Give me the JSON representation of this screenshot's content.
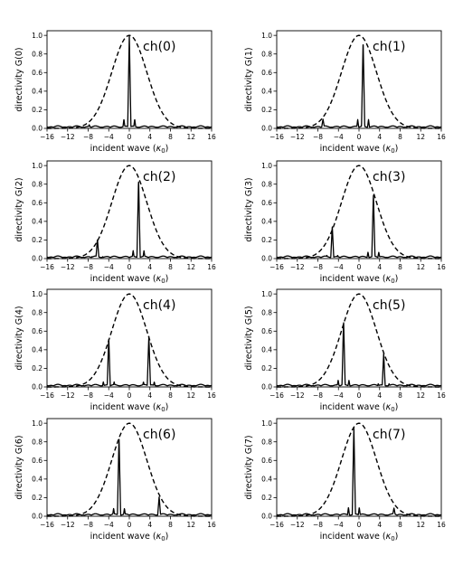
{
  "chart_data": {
    "type": "line",
    "layout": "4x2 grid of subplots",
    "xlabel": "incident wave (κ₀)",
    "xlabel_main": "incident wave (",
    "xlabel_symbol": "κ",
    "xlabel_sub": "0",
    "xlabel_close": ")",
    "xlim": [
      -16,
      16
    ],
    "ylim": [
      0,
      1.05
    ],
    "x_ticks": [
      -16,
      -12,
      -8,
      -4,
      0,
      4,
      8,
      12,
      16
    ],
    "x_tick_labels": [
      "−16",
      "−12",
      "−8",
      "−4",
      "0",
      "4",
      "8",
      "12",
      "16"
    ],
    "y_ticks": [
      0,
      0.2,
      0.4,
      0.6,
      0.8,
      1.0
    ],
    "y_tick_labels": [
      "0.0",
      "0.2",
      "0.4",
      "0.6",
      "0.8",
      "1.0"
    ],
    "envelope": {
      "style": "dashed",
      "shape": "gaussian",
      "center": 0,
      "peak": 1.0,
      "approx_half_width_at_half_max": 4.0,
      "near_zero_beyond": 8
    },
    "panels": [
      {
        "label": "ch(0)",
        "ylabel": "directivity G(0)",
        "main_peak": {
          "x": 0.0,
          "y": 1.0
        },
        "sidelobe": {
          "x": -7.8,
          "y": 0.04
        }
      },
      {
        "label": "ch(1)",
        "ylabel": "directivity G(1)",
        "main_peak": {
          "x": 0.8,
          "y": 0.95
        },
        "sidelobe": {
          "x": -7.0,
          "y": 0.1
        }
      },
      {
        "label": "ch(2)",
        "ylabel": "directivity G(2)",
        "main_peak": {
          "x": 1.8,
          "y": 0.86
        },
        "sidelobe": {
          "x": -6.2,
          "y": 0.21
        }
      },
      {
        "label": "ch(3)",
        "ylabel": "directivity G(3)",
        "main_peak": {
          "x": 2.8,
          "y": 0.7
        },
        "sidelobe": {
          "x": -5.2,
          "y": 0.35
        }
      },
      {
        "label": "ch(4)",
        "ylabel": "directivity G(4)",
        "main_peak": {
          "x": 3.8,
          "y": 0.55
        },
        "sidelobe": {
          "x": -4.0,
          "y": 0.54
        }
      },
      {
        "label": "ch(5)",
        "ylabel": "directivity G(5)",
        "main_peak": {
          "x": -3.0,
          "y": 0.72
        },
        "sidelobe": {
          "x": 4.8,
          "y": 0.36
        }
      },
      {
        "label": "ch(6)",
        "ylabel": "directivity G(6)",
        "main_peak": {
          "x": -2.0,
          "y": 0.85
        },
        "sidelobe": {
          "x": 5.8,
          "y": 0.21
        }
      },
      {
        "label": "ch(7)",
        "ylabel": "directivity G(7)",
        "main_peak": {
          "x": -1.0,
          "y": 0.96
        },
        "sidelobe": {
          "x": 6.8,
          "y": 0.09
        }
      }
    ]
  }
}
